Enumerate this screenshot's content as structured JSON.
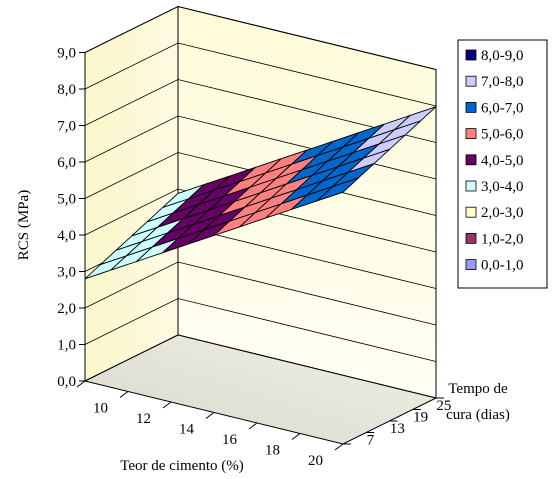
{
  "chart_data": {
    "type": "surface",
    "xlabel": "Teor de cimento (%)",
    "ylabel": "RCS (MPa)",
    "zlabel": "Tempo de\ncura (dias)",
    "x_ticks": [
      "10",
      "12",
      "14",
      "16",
      "18",
      "20"
    ],
    "z_ticks": [
      "7",
      "13",
      "19",
      "25"
    ],
    "y_ticks": [
      "0,0",
      "1,0",
      "2,0",
      "3,0",
      "4,0",
      "5,0",
      "6,0",
      "7,0",
      "8,0",
      "9,0"
    ],
    "ylim": [
      0,
      9
    ],
    "x": [
      10,
      11,
      12,
      13,
      14,
      15,
      16,
      17,
      18,
      19,
      20
    ],
    "z": [
      7,
      10,
      13,
      16,
      19,
      22,
      25
    ],
    "model": {
      "intercept": 2.8,
      "per_x": 0.41,
      "per_z": 0.06,
      "ref_x": 10,
      "ref_z": 7
    },
    "legend": [
      {
        "label": "8,0-9,0",
        "color": "#000080"
      },
      {
        "label": "7,0-8,0",
        "color": "#ccccff"
      },
      {
        "label": "6,0-7,0",
        "color": "#0066cc"
      },
      {
        "label": "5,0-6,0",
        "color": "#ff8080"
      },
      {
        "label": "4,0-5,0",
        "color": "#660066"
      },
      {
        "label": "3,0-4,0",
        "color": "#ccffff"
      },
      {
        "label": "2,0-3,0",
        "color": "#ffffcc"
      },
      {
        "label": "1,0-2,0",
        "color": "#993366"
      },
      {
        "label": "0,0-1,0",
        "color": "#9999ff"
      }
    ],
    "grid": true,
    "legend_position": "right"
  }
}
